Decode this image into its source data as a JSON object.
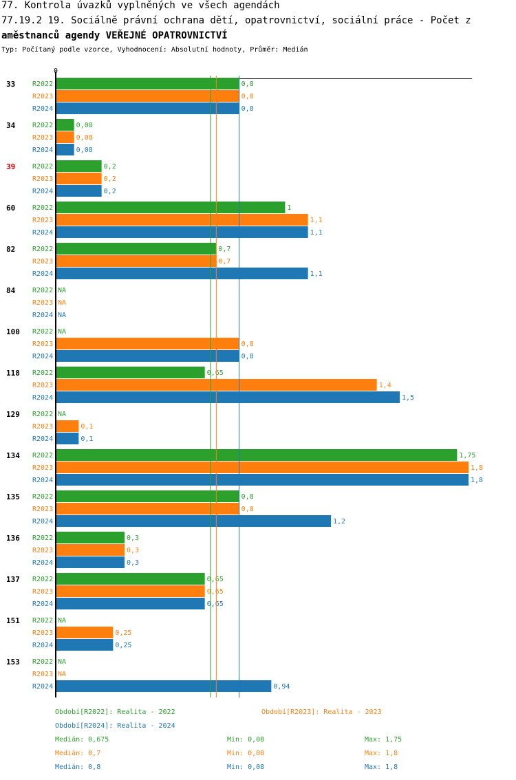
{
  "header": {
    "line1": "77. Kontrola úvazků vyplněných ve všech agendách",
    "line2": "77.19.2 19. Sociálně právní ochrana dětí, opatrovnictví, sociální práce - Počet z",
    "line3": "aměstnanců agendy VEŘEJNÉ OPATROVNICTVÍ",
    "subtitle": "Typ: Počítaný podle vzorce, Vyhodnocení: Absolutní hodnoty, Průměr: Medián"
  },
  "colors": {
    "R2022": "#2ca02c",
    "R2023": "#ff7f0e",
    "R2024": "#1f77b4",
    "highlight": "#cc0000"
  },
  "chart_data": {
    "type": "bar",
    "orientation": "horizontal",
    "axis_zero_label": "0",
    "xlim": [
      0,
      1.8
    ],
    "series_names": [
      "R2022",
      "R2023",
      "R2024"
    ],
    "groups": [
      {
        "label": "33",
        "highlight": false,
        "values": [
          0.8,
          0.8,
          0.8
        ],
        "labels": [
          "0,8",
          "0,8",
          "0,8"
        ]
      },
      {
        "label": "34",
        "highlight": false,
        "values": [
          0.08,
          0.08,
          0.08
        ],
        "labels": [
          "0,08",
          "0,08",
          "0,08"
        ]
      },
      {
        "label": "39",
        "highlight": true,
        "values": [
          0.2,
          0.2,
          0.2
        ],
        "labels": [
          "0,2",
          "0,2",
          "0,2"
        ]
      },
      {
        "label": "60",
        "highlight": false,
        "values": [
          1,
          1.1,
          1.1
        ],
        "labels": [
          "1",
          "1,1",
          "1,1"
        ]
      },
      {
        "label": "82",
        "highlight": false,
        "values": [
          0.7,
          0.7,
          1.1
        ],
        "labels": [
          "0,7",
          "0,7",
          "1,1"
        ]
      },
      {
        "label": "84",
        "highlight": false,
        "values": [
          null,
          null,
          null
        ],
        "labels": [
          "NA",
          "NA",
          "NA"
        ]
      },
      {
        "label": "100",
        "highlight": false,
        "values": [
          null,
          0.8,
          0.8
        ],
        "labels": [
          "NA",
          "0,8",
          "0,8"
        ]
      },
      {
        "label": "118",
        "highlight": false,
        "values": [
          0.65,
          1.4,
          1.5
        ],
        "labels": [
          "0,65",
          "1,4",
          "1,5"
        ]
      },
      {
        "label": "129",
        "highlight": false,
        "values": [
          null,
          0.1,
          0.1
        ],
        "labels": [
          "NA",
          "0,1",
          "0,1"
        ]
      },
      {
        "label": "134",
        "highlight": false,
        "values": [
          1.75,
          1.8,
          1.8
        ],
        "labels": [
          "1,75",
          "1,8",
          "1,8"
        ]
      },
      {
        "label": "135",
        "highlight": false,
        "values": [
          0.8,
          0.8,
          1.2
        ],
        "labels": [
          "0,8",
          "0,8",
          "1,2"
        ]
      },
      {
        "label": "136",
        "highlight": false,
        "values": [
          0.3,
          0.3,
          0.3
        ],
        "labels": [
          "0,3",
          "0,3",
          "0,3"
        ]
      },
      {
        "label": "137",
        "highlight": false,
        "values": [
          0.65,
          0.65,
          0.65
        ],
        "labels": [
          "0,65",
          "0,65",
          "0,65"
        ]
      },
      {
        "label": "151",
        "highlight": false,
        "values": [
          null,
          0.25,
          0.25
        ],
        "labels": [
          "NA",
          "0,25",
          "0,25"
        ]
      },
      {
        "label": "153",
        "highlight": false,
        "values": [
          null,
          null,
          0.94
        ],
        "labels": [
          "NA",
          "NA",
          "0,94"
        ]
      }
    ],
    "median_lines": [
      0.675,
      0.7,
      0.8
    ]
  },
  "legend": {
    "r2022": "Období[R2022]: Realita - 2022",
    "r2023": "Období[R2023]: Realita - 2023",
    "r2024": "Období[R2024]: Realita - 2024"
  },
  "stats": [
    {
      "median": "Medián: 0,675",
      "min": "Min: 0,08",
      "max": "Max: 1,75"
    },
    {
      "median": "Medián: 0,7",
      "min": "Min: 0,08",
      "max": "Max: 1,8"
    },
    {
      "median": "Medián: 0,8",
      "min": "Min: 0,08",
      "max": "Max: 1,8"
    }
  ]
}
